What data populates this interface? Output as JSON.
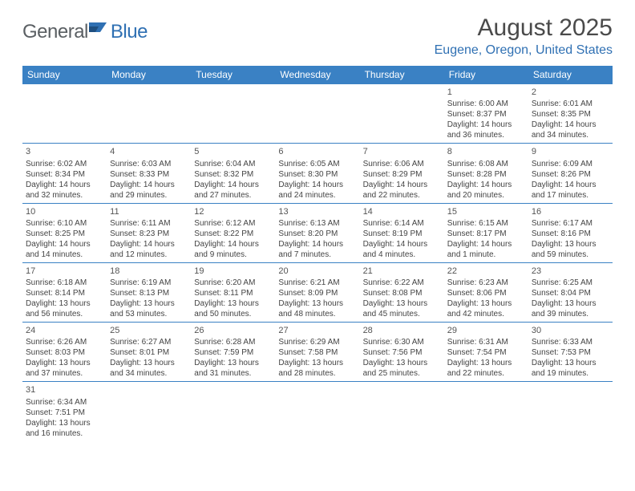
{
  "logo": {
    "text1": "General",
    "text2": "Blue"
  },
  "title": "August 2025",
  "location": "Eugene, Oregon, United States",
  "header_bg": "#3a81c4",
  "dow": [
    "Sunday",
    "Monday",
    "Tuesday",
    "Wednesday",
    "Thursday",
    "Friday",
    "Saturday"
  ],
  "first_weekday": 5,
  "days": [
    {
      "n": "1",
      "sr": "6:00 AM",
      "ss": "8:37 PM",
      "dl": "14 hours and 36 minutes."
    },
    {
      "n": "2",
      "sr": "6:01 AM",
      "ss": "8:35 PM",
      "dl": "14 hours and 34 minutes."
    },
    {
      "n": "3",
      "sr": "6:02 AM",
      "ss": "8:34 PM",
      "dl": "14 hours and 32 minutes."
    },
    {
      "n": "4",
      "sr": "6:03 AM",
      "ss": "8:33 PM",
      "dl": "14 hours and 29 minutes."
    },
    {
      "n": "5",
      "sr": "6:04 AM",
      "ss": "8:32 PM",
      "dl": "14 hours and 27 minutes."
    },
    {
      "n": "6",
      "sr": "6:05 AM",
      "ss": "8:30 PM",
      "dl": "14 hours and 24 minutes."
    },
    {
      "n": "7",
      "sr": "6:06 AM",
      "ss": "8:29 PM",
      "dl": "14 hours and 22 minutes."
    },
    {
      "n": "8",
      "sr": "6:08 AM",
      "ss": "8:28 PM",
      "dl": "14 hours and 20 minutes."
    },
    {
      "n": "9",
      "sr": "6:09 AM",
      "ss": "8:26 PM",
      "dl": "14 hours and 17 minutes."
    },
    {
      "n": "10",
      "sr": "6:10 AM",
      "ss": "8:25 PM",
      "dl": "14 hours and 14 minutes."
    },
    {
      "n": "11",
      "sr": "6:11 AM",
      "ss": "8:23 PM",
      "dl": "14 hours and 12 minutes."
    },
    {
      "n": "12",
      "sr": "6:12 AM",
      "ss": "8:22 PM",
      "dl": "14 hours and 9 minutes."
    },
    {
      "n": "13",
      "sr": "6:13 AM",
      "ss": "8:20 PM",
      "dl": "14 hours and 7 minutes."
    },
    {
      "n": "14",
      "sr": "6:14 AM",
      "ss": "8:19 PM",
      "dl": "14 hours and 4 minutes."
    },
    {
      "n": "15",
      "sr": "6:15 AM",
      "ss": "8:17 PM",
      "dl": "14 hours and 1 minute."
    },
    {
      "n": "16",
      "sr": "6:17 AM",
      "ss": "8:16 PM",
      "dl": "13 hours and 59 minutes."
    },
    {
      "n": "17",
      "sr": "6:18 AM",
      "ss": "8:14 PM",
      "dl": "13 hours and 56 minutes."
    },
    {
      "n": "18",
      "sr": "6:19 AM",
      "ss": "8:13 PM",
      "dl": "13 hours and 53 minutes."
    },
    {
      "n": "19",
      "sr": "6:20 AM",
      "ss": "8:11 PM",
      "dl": "13 hours and 50 minutes."
    },
    {
      "n": "20",
      "sr": "6:21 AM",
      "ss": "8:09 PM",
      "dl": "13 hours and 48 minutes."
    },
    {
      "n": "21",
      "sr": "6:22 AM",
      "ss": "8:08 PM",
      "dl": "13 hours and 45 minutes."
    },
    {
      "n": "22",
      "sr": "6:23 AM",
      "ss": "8:06 PM",
      "dl": "13 hours and 42 minutes."
    },
    {
      "n": "23",
      "sr": "6:25 AM",
      "ss": "8:04 PM",
      "dl": "13 hours and 39 minutes."
    },
    {
      "n": "24",
      "sr": "6:26 AM",
      "ss": "8:03 PM",
      "dl": "13 hours and 37 minutes."
    },
    {
      "n": "25",
      "sr": "6:27 AM",
      "ss": "8:01 PM",
      "dl": "13 hours and 34 minutes."
    },
    {
      "n": "26",
      "sr": "6:28 AM",
      "ss": "7:59 PM",
      "dl": "13 hours and 31 minutes."
    },
    {
      "n": "27",
      "sr": "6:29 AM",
      "ss": "7:58 PM",
      "dl": "13 hours and 28 minutes."
    },
    {
      "n": "28",
      "sr": "6:30 AM",
      "ss": "7:56 PM",
      "dl": "13 hours and 25 minutes."
    },
    {
      "n": "29",
      "sr": "6:31 AM",
      "ss": "7:54 PM",
      "dl": "13 hours and 22 minutes."
    },
    {
      "n": "30",
      "sr": "6:33 AM",
      "ss": "7:53 PM",
      "dl": "13 hours and 19 minutes."
    },
    {
      "n": "31",
      "sr": "6:34 AM",
      "ss": "7:51 PM",
      "dl": "13 hours and 16 minutes."
    }
  ],
  "labels": {
    "sunrise": "Sunrise:",
    "sunset": "Sunset:",
    "daylight": "Daylight:"
  }
}
